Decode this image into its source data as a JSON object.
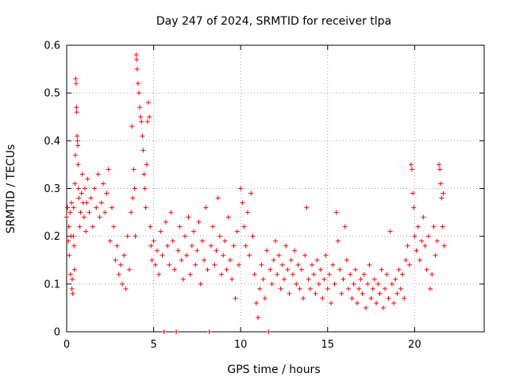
{
  "chart_data": {
    "type": "scatter",
    "title": "Day 247 of 2024, SRMTID for receiver tlpa",
    "xlabel": "GPS time / hours",
    "ylabel": "SRMTID / TECUs",
    "xlim": [
      0,
      24
    ],
    "ylim": [
      0,
      0.6
    ],
    "xticks": [
      0,
      5,
      10,
      15,
      20
    ],
    "yticks": [
      0,
      0.1,
      0.2,
      0.3,
      0.4,
      0.5,
      0.6
    ],
    "xtick_labels": [
      "0",
      "5",
      "10",
      "15",
      "20"
    ],
    "ytick_labels": [
      "0",
      "0.1",
      "0.2",
      "0.3",
      "0.4",
      "0.5",
      "0.6"
    ],
    "grid": true,
    "marker": "+",
    "color": "#ff0000",
    "series": [
      {
        "name": "SRMTID",
        "points": [
          [
            0.0,
            0.24
          ],
          [
            0.05,
            0.26
          ],
          [
            0.1,
            0.19
          ],
          [
            0.12,
            0.22
          ],
          [
            0.15,
            0.16
          ],
          [
            0.2,
            0.25
          ],
          [
            0.22,
            0.12
          ],
          [
            0.25,
            0.2
          ],
          [
            0.28,
            0.27
          ],
          [
            0.3,
            0.09
          ],
          [
            0.32,
            0.11
          ],
          [
            0.35,
            0.08
          ],
          [
            0.38,
            0.2
          ],
          [
            0.4,
            0.26
          ],
          [
            0.42,
            0.18
          ],
          [
            0.45,
            0.13
          ],
          [
            0.48,
            0.31
          ],
          [
            0.5,
            0.37
          ],
          [
            0.52,
            0.53
          ],
          [
            0.54,
            0.52
          ],
          [
            0.56,
            0.47
          ],
          [
            0.58,
            0.46
          ],
          [
            0.6,
            0.41
          ],
          [
            0.62,
            0.4
          ],
          [
            0.64,
            0.39
          ],
          [
            0.66,
            0.35
          ],
          [
            0.68,
            0.3
          ],
          [
            0.7,
            0.28
          ],
          [
            0.75,
            0.22
          ],
          [
            0.8,
            0.25
          ],
          [
            0.85,
            0.29
          ],
          [
            0.9,
            0.33
          ],
          [
            0.95,
            0.27
          ],
          [
            1.0,
            0.24
          ],
          [
            1.05,
            0.3
          ],
          [
            1.1,
            0.21
          ],
          [
            1.15,
            0.27
          ],
          [
            1.2,
            0.32
          ],
          [
            1.3,
            0.25
          ],
          [
            1.4,
            0.28
          ],
          [
            1.5,
            0.22
          ],
          [
            1.6,
            0.3
          ],
          [
            1.7,
            0.26
          ],
          [
            1.8,
            0.33
          ],
          [
            1.9,
            0.24
          ],
          [
            2.0,
            0.27
          ],
          [
            2.1,
            0.31
          ],
          [
            2.2,
            0.25
          ],
          [
            2.3,
            0.29
          ],
          [
            2.4,
            0.34
          ],
          [
            2.5,
            0.19
          ],
          [
            2.6,
            0.26
          ],
          [
            2.7,
            0.22
          ],
          [
            2.8,
            0.15
          ],
          [
            2.9,
            0.18
          ],
          [
            3.0,
            0.12
          ],
          [
            3.1,
            0.14
          ],
          [
            3.2,
            0.1
          ],
          [
            3.3,
            0.16
          ],
          [
            3.4,
            0.09
          ],
          [
            3.5,
            0.2
          ],
          [
            3.6,
            0.13
          ],
          [
            3.7,
            0.25
          ],
          [
            3.75,
            0.43
          ],
          [
            3.8,
            0.28
          ],
          [
            3.85,
            0.34
          ],
          [
            3.9,
            0.3
          ],
          [
            3.95,
            0.2
          ],
          [
            4.0,
            0.58
          ],
          [
            4.02,
            0.57
          ],
          [
            4.05,
            0.55
          ],
          [
            4.1,
            0.52
          ],
          [
            4.15,
            0.5
          ],
          [
            4.2,
            0.47
          ],
          [
            4.25,
            0.45
          ],
          [
            4.3,
            0.44
          ],
          [
            4.35,
            0.41
          ],
          [
            4.4,
            0.38
          ],
          [
            4.45,
            0.33
          ],
          [
            4.5,
            0.3
          ],
          [
            4.55,
            0.26
          ],
          [
            4.6,
            0.35
          ],
          [
            4.65,
            0.44
          ],
          [
            4.7,
            0.48
          ],
          [
            4.75,
            0.45
          ],
          [
            4.8,
            0.22
          ],
          [
            4.85,
            0.18
          ],
          [
            4.9,
            0.15
          ],
          [
            5.0,
            0.19
          ],
          [
            5.1,
            0.14
          ],
          [
            5.2,
            0.17
          ],
          [
            5.3,
            0.12
          ],
          [
            5.4,
            0.21
          ],
          [
            5.5,
            0.16
          ],
          [
            5.6,
            0.0
          ],
          [
            5.7,
            0.23
          ],
          [
            5.8,
            0.18
          ],
          [
            5.9,
            0.14
          ],
          [
            6.0,
            0.25
          ],
          [
            6.1,
            0.19
          ],
          [
            6.2,
            0.13
          ],
          [
            6.3,
            0.0
          ],
          [
            6.4,
            0.17
          ],
          [
            6.5,
            0.22
          ],
          [
            6.6,
            0.15
          ],
          [
            6.7,
            0.11
          ],
          [
            6.8,
            0.2
          ],
          [
            6.9,
            0.16
          ],
          [
            7.0,
            0.24
          ],
          [
            7.1,
            0.12
          ],
          [
            7.2,
            0.18
          ],
          [
            7.3,
            0.21
          ],
          [
            7.4,
            0.14
          ],
          [
            7.5,
            0.17
          ],
          [
            7.6,
            0.23
          ],
          [
            7.7,
            0.1
          ],
          [
            7.8,
            0.19
          ],
          [
            7.9,
            0.15
          ],
          [
            8.0,
            0.26
          ],
          [
            8.1,
            0.13
          ],
          [
            8.2,
            0.0
          ],
          [
            8.3,
            0.18
          ],
          [
            8.4,
            0.22
          ],
          [
            8.5,
            0.14
          ],
          [
            8.6,
            0.17
          ],
          [
            8.7,
            0.28
          ],
          [
            8.8,
            0.2
          ],
          [
            8.9,
            0.12
          ],
          [
            9.0,
            0.16
          ],
          [
            9.1,
            0.19
          ],
          [
            9.2,
            0.13
          ],
          [
            9.3,
            0.24
          ],
          [
            9.4,
            0.15
          ],
          [
            9.5,
            0.11
          ],
          [
            9.6,
            0.18
          ],
          [
            9.7,
            0.07
          ],
          [
            9.8,
            0.21
          ],
          [
            9.9,
            0.14
          ],
          [
            10.0,
            0.3
          ],
          [
            10.1,
            0.27
          ],
          [
            10.2,
            0.22
          ],
          [
            10.3,
            0.18
          ],
          [
            10.4,
            0.25
          ],
          [
            10.5,
            0.16
          ],
          [
            10.6,
            0.29
          ],
          [
            10.7,
            0.2
          ],
          [
            10.8,
            0.12
          ],
          [
            10.9,
            0.06
          ],
          [
            11.0,
            0.03
          ],
          [
            11.1,
            0.09
          ],
          [
            11.2,
            0.14
          ],
          [
            11.3,
            0.11
          ],
          [
            11.4,
            0.07
          ],
          [
            11.5,
            0.17
          ],
          [
            11.6,
            0.0
          ],
          [
            11.7,
            0.13
          ],
          [
            11.8,
            0.1
          ],
          [
            11.9,
            0.15
          ],
          [
            12.0,
            0.19
          ],
          [
            12.1,
            0.12
          ],
          [
            12.2,
            0.16
          ],
          [
            12.3,
            0.09
          ],
          [
            12.4,
            0.14
          ],
          [
            12.5,
            0.11
          ],
          [
            12.6,
            0.18
          ],
          [
            12.7,
            0.13
          ],
          [
            12.8,
            0.08
          ],
          [
            12.9,
            0.15
          ],
          [
            13.0,
            0.12
          ],
          [
            13.1,
            0.17
          ],
          [
            13.2,
            0.1
          ],
          [
            13.3,
            0.14
          ],
          [
            13.4,
            0.09
          ],
          [
            13.5,
            0.13
          ],
          [
            13.6,
            0.07
          ],
          [
            13.7,
            0.16
          ],
          [
            13.8,
            0.26
          ],
          [
            13.9,
            0.11
          ],
          [
            14.0,
            0.09
          ],
          [
            14.1,
            0.14
          ],
          [
            14.2,
            0.12
          ],
          [
            14.3,
            0.08
          ],
          [
            14.4,
            0.15
          ],
          [
            14.5,
            0.1
          ],
          [
            14.6,
            0.13
          ],
          [
            14.7,
            0.07
          ],
          [
            14.8,
            0.11
          ],
          [
            14.9,
            0.16
          ],
          [
            15.0,
            0.09
          ],
          [
            15.1,
            0.12
          ],
          [
            15.2,
            0.06
          ],
          [
            15.3,
            0.14
          ],
          [
            15.4,
            0.1
          ],
          [
            15.5,
            0.25
          ],
          [
            15.6,
            0.19
          ],
          [
            15.7,
            0.13
          ],
          [
            15.8,
            0.08
          ],
          [
            15.9,
            0.11
          ],
          [
            16.0,
            0.22
          ],
          [
            16.1,
            0.15
          ],
          [
            16.2,
            0.09
          ],
          [
            16.3,
            0.12
          ],
          [
            16.4,
            0.07
          ],
          [
            16.5,
            0.1
          ],
          [
            16.6,
            0.13
          ],
          [
            16.7,
            0.06
          ],
          [
            16.8,
            0.09
          ],
          [
            16.9,
            0.11
          ],
          [
            17.0,
            0.08
          ],
          [
            17.1,
            0.12
          ],
          [
            17.2,
            0.05
          ],
          [
            17.3,
            0.1
          ],
          [
            17.4,
            0.14
          ],
          [
            17.5,
            0.07
          ],
          [
            17.6,
            0.09
          ],
          [
            17.7,
            0.11
          ],
          [
            17.8,
            0.06
          ],
          [
            17.9,
            0.1
          ],
          [
            18.0,
            0.08
          ],
          [
            18.1,
            0.13
          ],
          [
            18.2,
            0.05
          ],
          [
            18.3,
            0.09
          ],
          [
            18.4,
            0.12
          ],
          [
            18.5,
            0.07
          ],
          [
            18.6,
            0.21
          ],
          [
            18.7,
            0.1
          ],
          [
            18.8,
            0.06
          ],
          [
            18.9,
            0.11
          ],
          [
            19.0,
            0.08
          ],
          [
            19.1,
            0.13
          ],
          [
            19.2,
            0.09
          ],
          [
            19.3,
            0.12
          ],
          [
            19.4,
            0.07
          ],
          [
            19.5,
            0.15
          ],
          [
            19.6,
            0.18
          ],
          [
            19.7,
            0.14
          ],
          [
            19.8,
            0.35
          ],
          [
            19.85,
            0.34
          ],
          [
            19.9,
            0.29
          ],
          [
            19.95,
            0.26
          ],
          [
            20.0,
            0.2
          ],
          [
            20.1,
            0.17
          ],
          [
            20.2,
            0.22
          ],
          [
            20.3,
            0.15
          ],
          [
            20.4,
            0.19
          ],
          [
            20.5,
            0.24
          ],
          [
            20.6,
            0.18
          ],
          [
            20.7,
            0.13
          ],
          [
            20.8,
            0.2
          ],
          [
            20.9,
            0.09
          ],
          [
            21.0,
            0.12
          ],
          [
            21.1,
            0.22
          ],
          [
            21.2,
            0.16
          ],
          [
            21.3,
            0.19
          ],
          [
            21.4,
            0.35
          ],
          [
            21.45,
            0.34
          ],
          [
            21.5,
            0.31
          ],
          [
            21.55,
            0.28
          ],
          [
            21.6,
            0.22
          ],
          [
            21.65,
            0.29
          ],
          [
            21.7,
            0.18
          ]
        ]
      }
    ]
  }
}
